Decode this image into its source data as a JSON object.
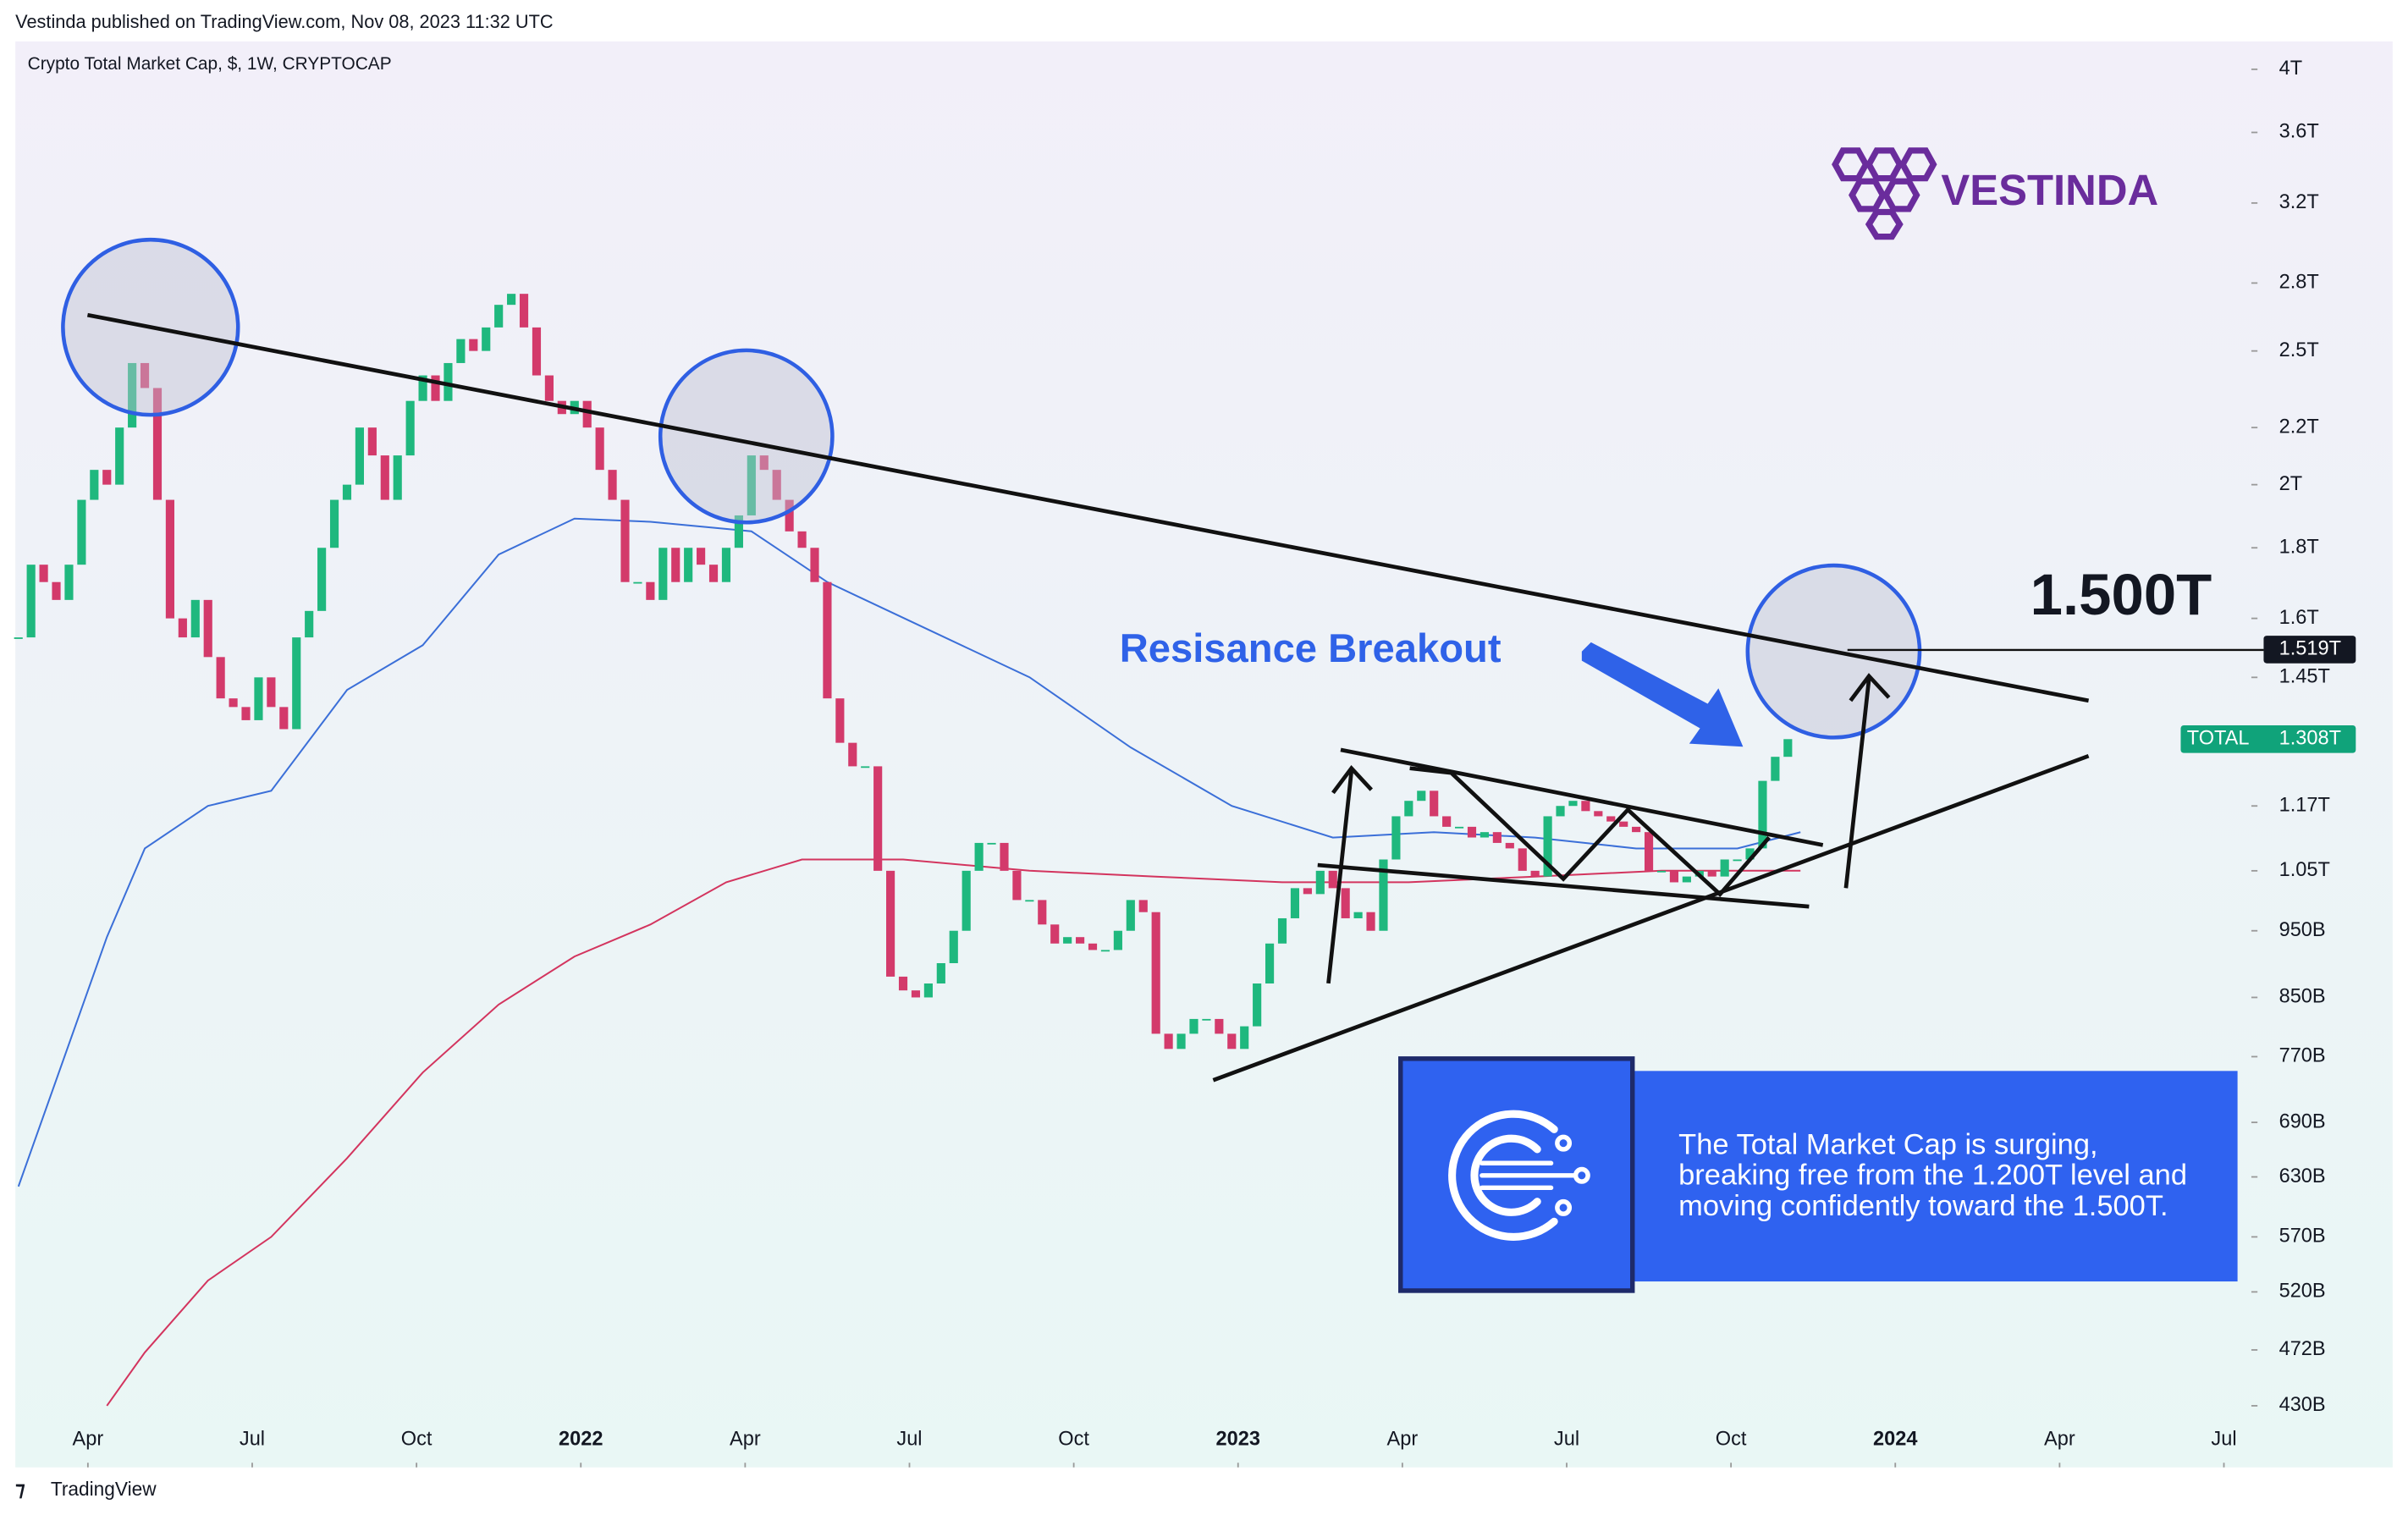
{
  "header": {
    "published": "Vestinda published on TradingView.com, Nov 08, 2023 11:32 UTC"
  },
  "chart_data": {
    "type": "candlestick",
    "title": "Crypto Total Market Cap, $, 1W, CRYPTOCAP",
    "up_color": "#1fb87e",
    "down_color": "#d33a6b",
    "values": [
      1.55,
      1.75,
      1.7,
      1.65,
      1.75,
      1.95,
      2.05,
      2.0,
      2.2,
      2.45,
      2.35,
      1.95,
      1.6,
      1.55,
      1.65,
      1.5,
      1.4,
      1.38,
      1.35,
      1.45,
      1.38,
      1.33,
      1.55,
      1.62,
      1.8,
      1.95,
      2.0,
      2.2,
      2.1,
      1.95,
      2.1,
      2.3,
      2.4,
      2.3,
      2.45,
      2.55,
      2.5,
      2.6,
      2.7,
      2.75,
      2.6,
      2.4,
      2.3,
      2.25,
      2.3,
      2.2,
      2.05,
      1.95,
      1.7,
      1.7,
      1.65,
      1.8,
      1.7,
      1.8,
      1.75,
      1.7,
      1.8,
      1.9,
      2.1,
      2.05,
      1.95,
      1.85,
      1.8,
      1.7,
      1.4,
      1.3,
      1.25,
      1.25,
      1.05,
      0.88,
      0.86,
      0.85,
      0.87,
      0.9,
      0.95,
      1.05,
      1.1,
      1.1,
      1.05,
      1.0,
      1.0,
      0.96,
      0.93,
      0.94,
      0.93,
      0.92,
      0.92,
      0.95,
      1.0,
      0.98,
      0.8,
      0.78,
      0.8,
      0.82,
      0.82,
      0.8,
      0.78,
      0.81,
      0.87,
      0.93,
      0.97,
      1.02,
      1.01,
      1.05,
      1.02,
      0.97,
      0.98,
      0.95,
      1.07,
      1.15,
      1.18,
      1.2,
      1.15,
      1.13,
      1.13,
      1.11,
      1.12,
      1.1,
      1.09,
      1.05,
      1.04,
      1.15,
      1.17,
      1.18,
      1.16,
      1.15,
      1.14,
      1.13,
      1.12,
      1.05,
      1.05,
      1.03,
      1.04,
      1.05,
      1.04,
      1.07,
      1.07,
      1.09,
      1.22,
      1.27,
      1.308
    ],
    "lines": [
      {
        "color": "#3b6fd8",
        "x": [
          0,
          7,
          10,
          15,
          20,
          26,
          32,
          38,
          44,
          50,
          58,
          64,
          72,
          80,
          88,
          96,
          104,
          112,
          120,
          128,
          136,
          141
        ],
        "values": [
          0.62,
          0.94,
          1.09,
          1.17,
          1.2,
          1.42,
          1.53,
          1.78,
          1.89,
          1.88,
          1.85,
          1.7,
          1.57,
          1.45,
          1.29,
          1.17,
          1.11,
          1.12,
          1.11,
          1.09,
          1.09,
          1.12
        ]
      },
      {
        "color": "#d3345e",
        "x": [
          7,
          10,
          15,
          20,
          26,
          32,
          38,
          44,
          50,
          56,
          62,
          70,
          80,
          90,
          100,
          110,
          120,
          130,
          141
        ],
        "values": [
          0.43,
          0.47,
          0.53,
          0.57,
          0.65,
          0.75,
          0.84,
          0.91,
          0.96,
          1.03,
          1.07,
          1.07,
          1.05,
          1.04,
          1.03,
          1.03,
          1.04,
          1.05,
          1.05
        ]
      }
    ],
    "xlim": [
      -0.24,
      176.55
    ],
    "xticks": [
      {
        "value": 5.5,
        "label": "Apr"
      },
      {
        "value": 18.5,
        "label": "Jul"
      },
      {
        "value": 31.5,
        "label": "Oct"
      },
      {
        "value": 44.5,
        "label": "2022"
      },
      {
        "value": 57.5,
        "label": "Apr"
      },
      {
        "value": 70.5,
        "label": "Jul"
      },
      {
        "value": 83.5,
        "label": "Oct"
      },
      {
        "value": 96.5,
        "label": "2023"
      },
      {
        "value": 109.5,
        "label": "Apr"
      },
      {
        "value": 122.5,
        "label": "Jul"
      },
      {
        "value": 135.5,
        "label": "Oct"
      },
      {
        "value": 148.5,
        "label": "2024"
      },
      {
        "value": 161.5,
        "label": "Apr"
      },
      {
        "value": 174.5,
        "label": "Jul"
      }
    ],
    "log_scale": true,
    "ylim": [
      0.388,
      4.19
    ],
    "yticks": [
      {
        "value": 4,
        "label": "4T"
      },
      {
        "value": 3.6,
        "label": "3.6T"
      },
      {
        "value": 3.2,
        "label": "3.2T"
      },
      {
        "value": 2.8,
        "label": "2.8T"
      },
      {
        "value": 2.5,
        "label": "2.5T"
      },
      {
        "value": 2.2,
        "label": "2.2T"
      },
      {
        "value": 2,
        "label": "2T"
      },
      {
        "value": 1.8,
        "label": "1.8T"
      },
      {
        "value": 1.6,
        "label": "1.6T"
      },
      {
        "value": 1.45,
        "label": "1.45T"
      },
      {
        "value": 1.17,
        "label": "1.17T"
      },
      {
        "value": 1.05,
        "label": "1.05T"
      },
      {
        "value": 0.95,
        "label": "950B"
      },
      {
        "value": 0.85,
        "label": "850B"
      },
      {
        "value": 0.77,
        "label": "770B"
      },
      {
        "value": 0.69,
        "label": "690B"
      },
      {
        "value": 0.63,
        "label": "630B"
      },
      {
        "value": 0.57,
        "label": "570B"
      },
      {
        "value": 0.52,
        "label": "520B"
      },
      {
        "value": 0.472,
        "label": "472B"
      },
      {
        "value": 0.43,
        "label": "430B"
      }
    ],
    "price_tags": [
      {
        "value": 1.519,
        "label": "1.519T",
        "color": "#131722"
      },
      {
        "name": "TOTAL",
        "value": 1.308,
        "label": "1.308T",
        "color": "#10a37a"
      }
    ],
    "annotations": {
      "breakout": "Resisance Breakout",
      "target": "1.500T"
    }
  },
  "logo": {
    "text": "VESTINDA"
  },
  "info_box": {
    "lines": [
      "The Total Market Cap is surging,",
      "breaking free from the 1.200T level and",
      "moving confidently toward the 1.500T."
    ]
  },
  "footer": {
    "brand": "TradingView"
  }
}
